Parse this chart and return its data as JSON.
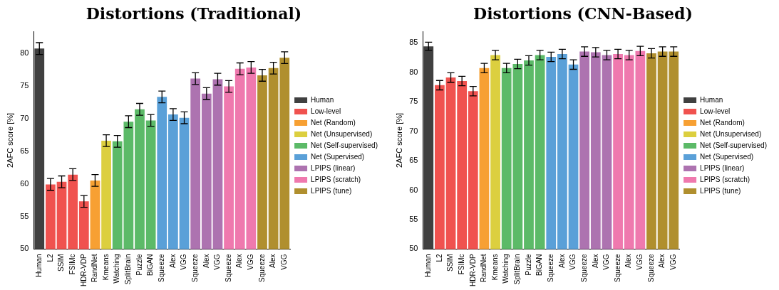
{
  "chart_data": [
    {
      "type": "bar",
      "title": "Distortions (Traditional)",
      "ylabel": "2AFC score [%]",
      "categories": [
        "Human",
        "L2",
        "SSIM",
        "FSIMc",
        "HDR-VDP",
        "RandNet",
        "Kmeans",
        "Watching",
        "SplitBrain",
        "Puzzle",
        "BiGAN",
        "Squeeze",
        "Alex",
        "VGG",
        "Squeeze",
        "Alex",
        "VGG",
        "Squeeze",
        "Alex",
        "VGG",
        "Squeeze",
        "Alex",
        "VGG"
      ],
      "ylim": [
        50,
        83.3
      ],
      "yticks": [
        50,
        55,
        60,
        65,
        70,
        75,
        80
      ],
      "grid": false,
      "legend": "right",
      "series": [
        {
          "name": "Human",
          "color": "#404040",
          "values": [
            80.7,
            null,
            null,
            null,
            null,
            null,
            null,
            null,
            null,
            null,
            null,
            null,
            null,
            null,
            null,
            null,
            null,
            null,
            null,
            null,
            null,
            null,
            null
          ],
          "errors": [
            0.9,
            null,
            null,
            null,
            null,
            null,
            null,
            null,
            null,
            null,
            null,
            null,
            null,
            null,
            null,
            null,
            null,
            null,
            null,
            null,
            null,
            null,
            null
          ]
        },
        {
          "name": "Low-level",
          "color": "#f0524f",
          "values": [
            null,
            59.9,
            60.3,
            61.4,
            57.3,
            null,
            null,
            null,
            null,
            null,
            null,
            null,
            null,
            null,
            null,
            null,
            null,
            null,
            null,
            null,
            null,
            null,
            null
          ],
          "errors": [
            null,
            0.9,
            0.9,
            0.9,
            0.9,
            null,
            null,
            null,
            null,
            null,
            null,
            null,
            null,
            null,
            null,
            null,
            null,
            null,
            null,
            null,
            null,
            null,
            null
          ]
        },
        {
          "name": "Net (Random)",
          "color": "#f7a033",
          "values": [
            null,
            null,
            null,
            null,
            null,
            60.5,
            null,
            null,
            null,
            null,
            null,
            null,
            null,
            null,
            null,
            null,
            null,
            null,
            null,
            null,
            null,
            null,
            null
          ],
          "errors": [
            null,
            null,
            null,
            null,
            null,
            0.9,
            null,
            null,
            null,
            null,
            null,
            null,
            null,
            null,
            null,
            null,
            null,
            null,
            null,
            null,
            null,
            null,
            null
          ]
        },
        {
          "name": "Net (Unsupervised)",
          "color": "#dccf3f",
          "values": [
            null,
            null,
            null,
            null,
            null,
            null,
            66.6,
            null,
            null,
            null,
            null,
            null,
            null,
            null,
            null,
            null,
            null,
            null,
            null,
            null,
            null,
            null,
            null
          ],
          "errors": [
            null,
            null,
            null,
            null,
            null,
            null,
            0.9,
            null,
            null,
            null,
            null,
            null,
            null,
            null,
            null,
            null,
            null,
            null,
            null,
            null,
            null,
            null,
            null
          ]
        },
        {
          "name": "Net (Self-supervised)",
          "color": "#5cba68",
          "values": [
            null,
            null,
            null,
            null,
            null,
            null,
            null,
            66.5,
            69.5,
            71.4,
            69.7,
            null,
            null,
            null,
            null,
            null,
            null,
            null,
            null,
            null,
            null,
            null,
            null
          ],
          "errors": [
            null,
            null,
            null,
            null,
            null,
            null,
            null,
            0.9,
            0.9,
            0.9,
            0.9,
            null,
            null,
            null,
            null,
            null,
            null,
            null,
            null,
            null,
            null,
            null,
            null
          ]
        },
        {
          "name": "Net (Supervised)",
          "color": "#5aa0d8",
          "values": [
            null,
            null,
            null,
            null,
            null,
            null,
            null,
            null,
            null,
            null,
            null,
            73.3,
            70.6,
            70.1,
            null,
            null,
            null,
            null,
            null,
            null,
            null,
            null,
            null
          ],
          "errors": [
            null,
            null,
            null,
            null,
            null,
            null,
            null,
            null,
            null,
            null,
            null,
            0.9,
            0.9,
            0.9,
            null,
            null,
            null,
            null,
            null,
            null,
            null,
            null,
            null
          ]
        },
        {
          "name": "LPIPS (linear)",
          "color": "#ad73b0",
          "values": [
            null,
            null,
            null,
            null,
            null,
            null,
            null,
            null,
            null,
            null,
            null,
            null,
            null,
            null,
            76.1,
            73.8,
            76.0,
            null,
            null,
            null,
            null,
            null,
            null
          ],
          "errors": [
            null,
            null,
            null,
            null,
            null,
            null,
            null,
            null,
            null,
            null,
            null,
            null,
            null,
            null,
            0.9,
            0.9,
            0.9,
            null,
            null,
            null,
            null,
            null,
            null
          ]
        },
        {
          "name": "LPIPS (scratch)",
          "color": "#ef79ae",
          "values": [
            null,
            null,
            null,
            null,
            null,
            null,
            null,
            null,
            null,
            null,
            null,
            null,
            null,
            null,
            null,
            null,
            null,
            74.9,
            77.6,
            77.8,
            null,
            null,
            null
          ],
          "errors": [
            null,
            null,
            null,
            null,
            null,
            null,
            null,
            null,
            null,
            null,
            null,
            null,
            null,
            null,
            null,
            null,
            null,
            0.9,
            0.9,
            0.9,
            null,
            null,
            null
          ]
        },
        {
          "name": "LPIPS (tune)",
          "color": "#b08f2e",
          "values": [
            null,
            null,
            null,
            null,
            null,
            null,
            null,
            null,
            null,
            null,
            null,
            null,
            null,
            null,
            null,
            null,
            null,
            null,
            null,
            null,
            76.6,
            77.7,
            79.3
          ],
          "errors": [
            null,
            null,
            null,
            null,
            null,
            null,
            null,
            null,
            null,
            null,
            null,
            null,
            null,
            null,
            null,
            null,
            null,
            null,
            null,
            null,
            0.9,
            0.9,
            0.9
          ]
        }
      ]
    },
    {
      "type": "bar",
      "title": "Distortions (CNN-Based)",
      "ylabel": "2AFC score [%]",
      "categories": [
        "Human",
        "L2",
        "SSIM",
        "FSIMc",
        "HDR-VDP",
        "RandNet",
        "Kmeans",
        "Watching",
        "SplitBrain",
        "Puzzle",
        "BiGAN",
        "Squeeze",
        "Alex",
        "VGG",
        "Squeeze",
        "Alex",
        "VGG",
        "Squeeze",
        "Alex",
        "VGG",
        "Squeeze",
        "Alex",
        "VGG"
      ],
      "ylim": [
        50,
        86.9
      ],
      "yticks": [
        50,
        55,
        60,
        65,
        70,
        75,
        80,
        85
      ],
      "grid": false,
      "legend": "right",
      "series": [
        {
          "name": "Human",
          "color": "#404040",
          "values": [
            84.4,
            null,
            null,
            null,
            null,
            null,
            null,
            null,
            null,
            null,
            null,
            null,
            null,
            null,
            null,
            null,
            null,
            null,
            null,
            null,
            null,
            null,
            null
          ],
          "errors": [
            0.7,
            null,
            null,
            null,
            null,
            null,
            null,
            null,
            null,
            null,
            null,
            null,
            null,
            null,
            null,
            null,
            null,
            null,
            null,
            null,
            null,
            null,
            null
          ]
        },
        {
          "name": "Low-level",
          "color": "#f0524f",
          "values": [
            null,
            77.8,
            79.1,
            78.5,
            76.8,
            null,
            null,
            null,
            null,
            null,
            null,
            null,
            null,
            null,
            null,
            null,
            null,
            null,
            null,
            null,
            null,
            null,
            null
          ],
          "errors": [
            null,
            0.8,
            0.8,
            0.8,
            0.8,
            null,
            null,
            null,
            null,
            null,
            null,
            null,
            null,
            null,
            null,
            null,
            null,
            null,
            null,
            null,
            null,
            null,
            null
          ]
        },
        {
          "name": "Net (Random)",
          "color": "#f7a033",
          "values": [
            null,
            null,
            null,
            null,
            null,
            80.7,
            null,
            null,
            null,
            null,
            null,
            null,
            null,
            null,
            null,
            null,
            null,
            null,
            null,
            null,
            null,
            null,
            null
          ],
          "errors": [
            null,
            null,
            null,
            null,
            null,
            0.8,
            null,
            null,
            null,
            null,
            null,
            null,
            null,
            null,
            null,
            null,
            null,
            null,
            null,
            null,
            null,
            null,
            null
          ]
        },
        {
          "name": "Net (Unsupervised)",
          "color": "#dccf3f",
          "values": [
            null,
            null,
            null,
            null,
            null,
            null,
            82.9,
            null,
            null,
            null,
            null,
            null,
            null,
            null,
            null,
            null,
            null,
            null,
            null,
            null,
            null,
            null,
            null
          ],
          "errors": [
            null,
            null,
            null,
            null,
            null,
            null,
            0.8,
            null,
            null,
            null,
            null,
            null,
            null,
            null,
            null,
            null,
            null,
            null,
            null,
            null,
            null,
            null,
            null
          ]
        },
        {
          "name": "Net (Self-supervised)",
          "color": "#5cba68",
          "values": [
            null,
            null,
            null,
            null,
            null,
            null,
            null,
            80.7,
            81.4,
            82.0,
            82.9,
            null,
            null,
            null,
            null,
            null,
            null,
            null,
            null,
            null,
            null,
            null,
            null
          ],
          "errors": [
            null,
            null,
            null,
            null,
            null,
            null,
            null,
            0.8,
            0.8,
            0.8,
            0.8,
            null,
            null,
            null,
            null,
            null,
            null,
            null,
            null,
            null,
            null,
            null,
            null
          ]
        },
        {
          "name": "Net (Supervised)",
          "color": "#5aa0d8",
          "values": [
            null,
            null,
            null,
            null,
            null,
            null,
            null,
            null,
            null,
            null,
            null,
            82.6,
            83.1,
            81.3,
            null,
            null,
            null,
            null,
            null,
            null,
            null,
            null,
            null
          ],
          "errors": [
            null,
            null,
            null,
            null,
            null,
            null,
            null,
            null,
            null,
            null,
            null,
            0.8,
            0.8,
            0.8,
            null,
            null,
            null,
            null,
            null,
            null,
            null,
            null,
            null
          ]
        },
        {
          "name": "LPIPS (linear)",
          "color": "#ad73b0",
          "values": [
            null,
            null,
            null,
            null,
            null,
            null,
            null,
            null,
            null,
            null,
            null,
            null,
            null,
            null,
            83.5,
            83.4,
            82.9,
            null,
            null,
            null,
            null,
            null,
            null
          ],
          "errors": [
            null,
            null,
            null,
            null,
            null,
            null,
            null,
            null,
            null,
            null,
            null,
            null,
            null,
            null,
            0.8,
            0.8,
            0.8,
            null,
            null,
            null,
            null,
            null,
            null
          ]
        },
        {
          "name": "LPIPS (scratch)",
          "color": "#ef79ae",
          "values": [
            null,
            null,
            null,
            null,
            null,
            null,
            null,
            null,
            null,
            null,
            null,
            null,
            null,
            null,
            null,
            null,
            null,
            83.1,
            82.9,
            83.6,
            null,
            null,
            null
          ],
          "errors": [
            null,
            null,
            null,
            null,
            null,
            null,
            null,
            null,
            null,
            null,
            null,
            null,
            null,
            null,
            null,
            null,
            null,
            0.8,
            0.8,
            0.8,
            null,
            null,
            null
          ]
        },
        {
          "name": "LPIPS (tune)",
          "color": "#b08f2e",
          "values": [
            null,
            null,
            null,
            null,
            null,
            null,
            null,
            null,
            null,
            null,
            null,
            null,
            null,
            null,
            null,
            null,
            null,
            null,
            null,
            null,
            83.2,
            83.5,
            83.5
          ],
          "errors": [
            null,
            null,
            null,
            null,
            null,
            null,
            null,
            null,
            null,
            null,
            null,
            null,
            null,
            null,
            null,
            null,
            null,
            null,
            null,
            null,
            0.8,
            0.8,
            0.8
          ]
        }
      ]
    }
  ]
}
